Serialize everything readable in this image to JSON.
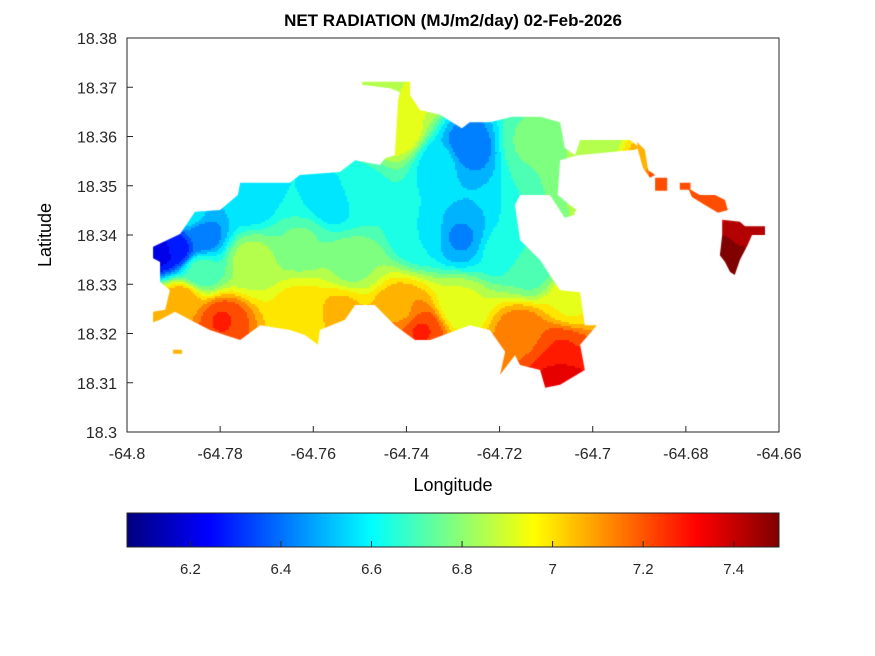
{
  "chart_data": {
    "type": "heatmap",
    "title": "NET RADIATION (MJ/m2/day) 02-Feb-2026",
    "xlabel": "Longitude",
    "ylabel": "Latitude",
    "xlim": [
      -64.8,
      -64.66
    ],
    "ylim": [
      18.3,
      18.38
    ],
    "xticks": [
      -64.8,
      -64.78,
      -64.76,
      -64.74,
      -64.72,
      -64.7,
      -64.68,
      -64.66
    ],
    "xtick_labels": [
      "-64.8",
      "-64.78",
      "-64.76",
      "-64.74",
      "-64.72",
      "-64.7",
      "-64.68",
      "-64.66"
    ],
    "yticks": [
      18.3,
      18.31,
      18.32,
      18.33,
      18.34,
      18.35,
      18.36,
      18.37,
      18.38
    ],
    "ytick_labels": [
      "18.3",
      "18.31",
      "18.32",
      "18.33",
      "18.34",
      "18.35",
      "18.36",
      "18.37",
      "18.38"
    ],
    "grid": false,
    "colormap": "jet",
    "clim": [
      6.06,
      7.5
    ],
    "colorbar": {
      "location": "bottom",
      "ticks": [
        6.2,
        6.4,
        6.6,
        6.8,
        7.0,
        7.2,
        7.4
      ],
      "tick_labels": [
        "6.2",
        "6.4",
        "6.6",
        "6.8",
        "7",
        "7.2",
        "7.4"
      ]
    },
    "regions": [
      [
        [
          -64.7944,
          18.3376
        ],
        [
          -64.7886,
          18.3402
        ],
        [
          -64.7854,
          18.3447
        ],
        [
          -64.78,
          18.3451
        ],
        [
          -64.7762,
          18.3481
        ],
        [
          -64.7757,
          18.3506
        ],
        [
          -64.765,
          18.3506
        ],
        [
          -64.7629,
          18.3522
        ],
        [
          -64.7543,
          18.3528
        ],
        [
          -64.751,
          18.3552
        ],
        [
          -64.7457,
          18.3542
        ],
        [
          -64.7446,
          18.3556
        ],
        [
          -64.7425,
          18.3562
        ],
        [
          -64.7418,
          18.3674
        ],
        [
          -64.7414,
          18.369
        ],
        [
          -64.7435,
          18.3698
        ],
        [
          -64.7495,
          18.3705
        ],
        [
          -64.7495,
          18.3711
        ],
        [
          -64.7392,
          18.3711
        ],
        [
          -64.7392,
          18.3684
        ],
        [
          -64.7371,
          18.3654
        ],
        [
          -64.7328,
          18.3644
        ],
        [
          -64.7281,
          18.3617
        ],
        [
          -64.7264,
          18.3629
        ],
        [
          -64.7221,
          18.3629
        ],
        [
          -64.7173,
          18.364
        ],
        [
          -64.7113,
          18.364
        ],
        [
          -64.707,
          18.3629
        ],
        [
          -64.706,
          18.3577
        ],
        [
          -64.7038,
          18.3562
        ],
        [
          -64.7027,
          18.3593
        ],
        [
          -64.692,
          18.3593
        ],
        [
          -64.6899,
          18.3577
        ],
        [
          -64.6909,
          18.3573
        ],
        [
          -64.7032,
          18.3562
        ],
        [
          -64.707,
          18.3552
        ],
        [
          -64.7075,
          18.3481
        ],
        [
          -64.7049,
          18.3461
        ],
        [
          -64.7038,
          18.3441
        ],
        [
          -64.706,
          18.3435
        ],
        [
          -64.7092,
          18.3481
        ],
        [
          -64.7156,
          18.3481
        ],
        [
          -64.7167,
          18.3461
        ],
        [
          -64.7156,
          18.339
        ],
        [
          -64.7113,
          18.3349
        ],
        [
          -64.7092,
          18.3319
        ],
        [
          -64.707,
          18.3288
        ],
        [
          -64.7027,
          18.3284
        ],
        [
          -64.7017,
          18.3217
        ],
        [
          -64.6991,
          18.3217
        ],
        [
          -64.7027,
          18.3177
        ],
        [
          -64.7017,
          18.3126
        ],
        [
          -64.707,
          18.3096
        ],
        [
          -64.7102,
          18.309
        ],
        [
          -64.7113,
          18.3126
        ],
        [
          -64.7156,
          18.3136
        ],
        [
          -64.7167,
          18.3156
        ],
        [
          -64.7199,
          18.3116
        ],
        [
          -64.7188,
          18.3163
        ],
        [
          -64.7221,
          18.3207
        ],
        [
          -64.7264,
          18.3217
        ],
        [
          -64.7349,
          18.3187
        ],
        [
          -64.7382,
          18.3187
        ],
        [
          -64.7425,
          18.3217
        ],
        [
          -64.7468,
          18.3258
        ],
        [
          -64.751,
          18.3258
        ],
        [
          -64.7532,
          18.3228
        ],
        [
          -64.7586,
          18.3207
        ],
        [
          -64.759,
          18.3177
        ],
        [
          -64.7618,
          18.3197
        ],
        [
          -64.765,
          18.3207
        ],
        [
          -64.7714,
          18.3217
        ],
        [
          -64.7757,
          18.3187
        ],
        [
          -64.779,
          18.3197
        ],
        [
          -64.7822,
          18.3207
        ],
        [
          -64.7865,
          18.3228
        ],
        [
          -64.7897,
          18.3244
        ],
        [
          -64.7929,
          18.3228
        ],
        [
          -64.7944,
          18.3223
        ],
        [
          -64.7944,
          18.3244
        ],
        [
          -64.7918,
          18.3248
        ],
        [
          -64.7908,
          18.3288
        ],
        [
          -64.7929,
          18.3305
        ],
        [
          -64.7929,
          18.3345
        ],
        [
          -64.7944,
          18.3353
        ]
      ],
      [
        [
          -64.6905,
          18.3589
        ],
        [
          -64.6888,
          18.3573
        ],
        [
          -64.6881,
          18.3532
        ],
        [
          -64.6866,
          18.3522
        ],
        [
          -64.6877,
          18.3516
        ],
        [
          -64.6892,
          18.3536
        ],
        [
          -64.6903,
          18.3573
        ]
      ],
      [
        [
          -64.6866,
          18.3516
        ],
        [
          -64.684,
          18.3516
        ],
        [
          -64.684,
          18.349
        ],
        [
          -64.6866,
          18.349
        ]
      ],
      [
        [
          -64.6813,
          18.3506
        ],
        [
          -64.679,
          18.3506
        ],
        [
          -64.679,
          18.3492
        ],
        [
          -64.6813,
          18.3492
        ]
      ],
      [
        [
          -64.6795,
          18.3495
        ],
        [
          -64.677,
          18.3481
        ],
        [
          -64.6737,
          18.3481
        ],
        [
          -64.6716,
          18.3471
        ],
        [
          -64.671,
          18.3451
        ],
        [
          -64.6731,
          18.3445
        ],
        [
          -64.6759,
          18.3461
        ],
        [
          -64.6787,
          18.3477
        ]
      ],
      [
        [
          -64.6722,
          18.3431
        ],
        [
          -64.6684,
          18.3427
        ],
        [
          -64.6673,
          18.3418
        ],
        [
          -64.663,
          18.3418
        ],
        [
          -64.663,
          18.34
        ],
        [
          -64.6658,
          18.34
        ],
        [
          -64.6667,
          18.338
        ],
        [
          -64.6684,
          18.3349
        ],
        [
          -64.6695,
          18.3319
        ],
        [
          -64.6705,
          18.3325
        ],
        [
          -64.6716,
          18.3345
        ],
        [
          -64.6727,
          18.3359
        ],
        [
          -64.6722,
          18.34
        ]
      ],
      [
        [
          -64.7066,
          18.3471
        ],
        [
          -64.7049,
          18.3461
        ],
        [
          -64.7034,
          18.3451
        ],
        [
          -64.7049,
          18.3437
        ],
        [
          -64.7066,
          18.3451
        ]
      ],
      [
        [
          -64.7901,
          18.3167
        ],
        [
          -64.7882,
          18.3167
        ],
        [
          -64.7882,
          18.3159
        ],
        [
          -64.7901,
          18.3159
        ]
      ]
    ],
    "samples": [
      [
        -64.7929,
        18.3366,
        6.22
      ],
      [
        -64.7897,
        18.3376,
        6.25
      ],
      [
        -64.7843,
        18.34,
        6.4
      ],
      [
        -64.7865,
        18.3441,
        6.55
      ],
      [
        -64.7736,
        18.3471,
        6.55
      ],
      [
        -64.7629,
        18.3491,
        6.6
      ],
      [
        -64.7564,
        18.3471,
        6.55
      ],
      [
        -64.75,
        18.3491,
        6.65
      ],
      [
        -64.7414,
        18.3613,
        6.95
      ],
      [
        -64.7457,
        18.3694,
        6.85
      ],
      [
        -64.7392,
        18.3674,
        6.9
      ],
      [
        -64.7274,
        18.3583,
        6.4
      ],
      [
        -64.7328,
        18.3552,
        6.55
      ],
      [
        -64.7135,
        18.3593,
        6.75
      ],
      [
        -64.6984,
        18.3593,
        6.85
      ],
      [
        -64.6888,
        18.3562,
        7.05
      ],
      [
        -64.6856,
        18.3522,
        7.2
      ],
      [
        -64.6748,
        18.3481,
        7.2
      ],
      [
        -64.6684,
        18.34,
        7.45
      ],
      [
        -64.6705,
        18.3366,
        7.5
      ],
      [
        -64.7285,
        18.3396,
        6.45
      ],
      [
        -64.7371,
        18.34,
        6.6
      ],
      [
        -64.7199,
        18.337,
        6.62
      ],
      [
        -64.7135,
        18.3329,
        6.72
      ],
      [
        -64.7736,
        18.3349,
        6.85
      ],
      [
        -64.7629,
        18.339,
        6.75
      ],
      [
        -64.7521,
        18.3339,
        6.8
      ],
      [
        -64.7843,
        18.3329,
        6.7
      ],
      [
        -64.7886,
        18.3268,
        7.1
      ],
      [
        -64.78,
        18.3228,
        7.25
      ],
      [
        -64.7629,
        18.3248,
        7.0
      ],
      [
        -64.7543,
        18.3248,
        7.05
      ],
      [
        -64.7414,
        18.3248,
        7.1
      ],
      [
        -64.7371,
        18.3207,
        7.25
      ],
      [
        -64.7285,
        18.3258,
        6.9
      ],
      [
        -64.7156,
        18.3207,
        7.15
      ],
      [
        -64.707,
        18.3167,
        7.25
      ],
      [
        -64.707,
        18.3116,
        7.35
      ],
      [
        -64.7049,
        18.3268,
        6.95
      ],
      [
        -64.7929,
        18.3236,
        7.05
      ],
      [
        -64.7892,
        18.3163,
        7.1
      ]
    ]
  }
}
